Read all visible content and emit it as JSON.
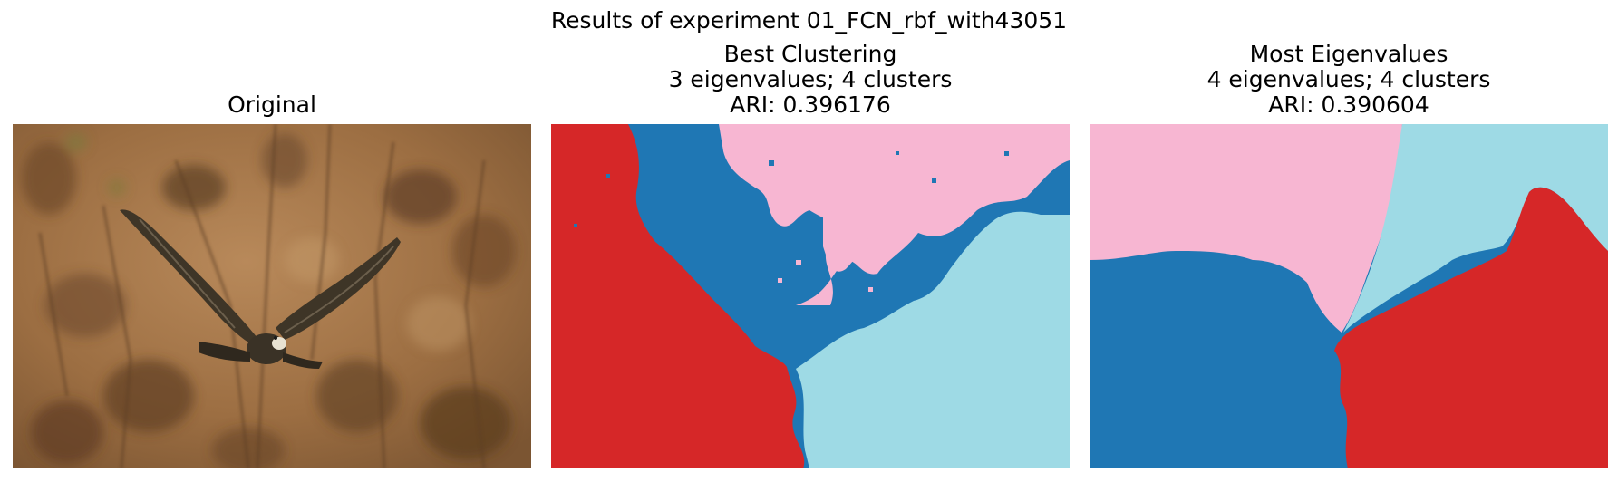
{
  "figure": {
    "suptitle": "Results of experiment 01_FCN_rbf_with43051"
  },
  "panels": [
    {
      "name": "original",
      "title_lines": [
        "Original"
      ],
      "content": "photo of a hawk flying over a brown bushy background"
    },
    {
      "name": "best-clustering",
      "title_lines": [
        "Best Clustering",
        "3 eigenvalues; 4 clusters",
        "ARI: 0.396176"
      ]
    },
    {
      "name": "most-eigenvalues",
      "title_lines": [
        "Most Eigenvalues",
        "4 eigenvalues; 4 clusters",
        "ARI: 0.390604"
      ]
    }
  ],
  "cluster_colors": {
    "dark_blue": "#1f77b4",
    "light_blue": "#9edae5",
    "red": "#d62728",
    "pink": "#f7b6d2"
  }
}
